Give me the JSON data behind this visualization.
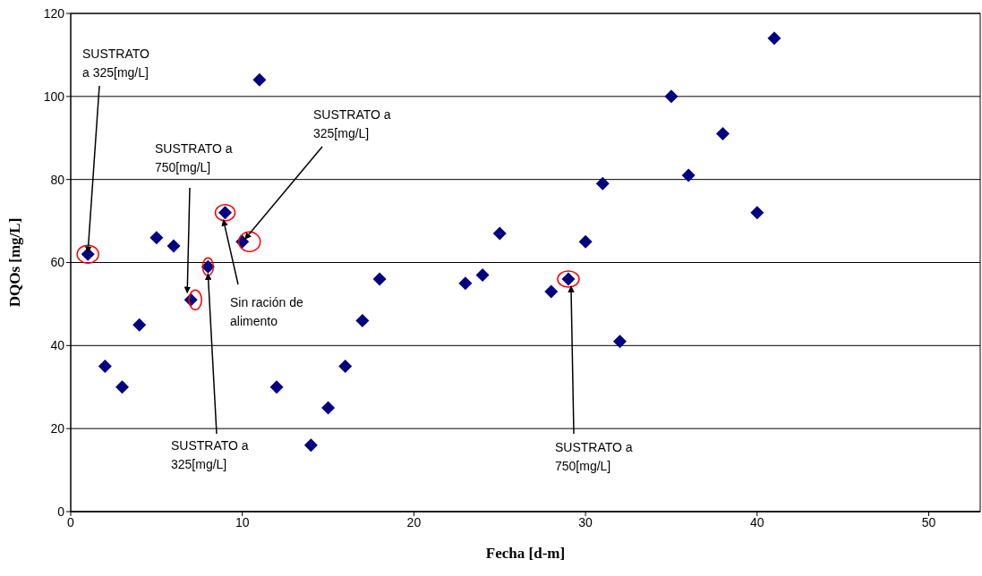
{
  "chart_data": {
    "type": "scatter",
    "xlabel": "Fecha [d-m]",
    "ylabel": "DQOs [mg/L]",
    "x": [
      1,
      2,
      3,
      4,
      5,
      6,
      7,
      8,
      9,
      10,
      11,
      12,
      14,
      15,
      16,
      17,
      18,
      23,
      24,
      25,
      28,
      29,
      30,
      31,
      32,
      35,
      36,
      38,
      40,
      41
    ],
    "series": [
      {
        "color": "#000080",
        "values": [
          62,
          35,
          30,
          45,
          66,
          64,
          51,
          59,
          72,
          65,
          104,
          30,
          16,
          25,
          35,
          46,
          56,
          55,
          57,
          67,
          53,
          56,
          65,
          79,
          41,
          100,
          81,
          91,
          72,
          114
        ]
      }
    ],
    "xlim": [
      0,
      53
    ],
    "xticks": [
      0,
      10,
      20,
      30,
      40,
      50
    ],
    "ylim": [
      0,
      120
    ],
    "yticks": [
      0,
      20,
      40,
      60,
      80,
      100,
      120
    ],
    "grid": "y",
    "marker": "diamond",
    "annotations": [
      {
        "text": "SUSTRATO a 325[mg/L]",
        "x": 1,
        "y": 62
      },
      {
        "text": "SUSTRATO a 750[mg/L]",
        "x": 7,
        "y": 51
      },
      {
        "text": "SUSTRATO a 325[mg/L]",
        "x": 8,
        "y": 59
      },
      {
        "text": "Sin ración de alimento",
        "x": 9,
        "y": 72
      },
      {
        "text": "SUSTRATO a 325[mg/L]",
        "x": 10,
        "y": 65
      },
      {
        "text": "SUSTRATO a 750[mg/L]",
        "x": 29,
        "y": 56
      }
    ]
  }
}
